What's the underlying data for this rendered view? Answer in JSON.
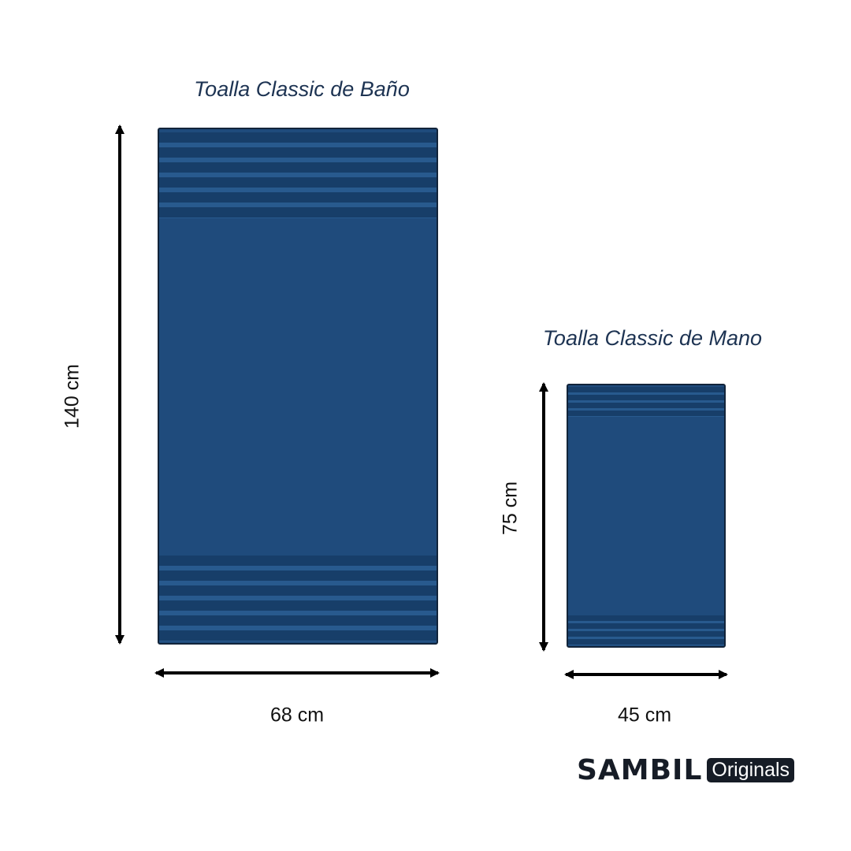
{
  "bath_towel": {
    "title": "Toalla Classic de Baño",
    "height_label": "140 cm",
    "width_label": "68 cm"
  },
  "hand_towel": {
    "title": "Toalla Classic de Mano",
    "height_label": "75 cm",
    "width_label": "45 cm"
  },
  "colors": {
    "towel": "#1f4b7c",
    "stripe_dark": "#173e69",
    "text": "#1d3352"
  },
  "brand": {
    "name": "SAMBIL",
    "badge": "Originals"
  }
}
